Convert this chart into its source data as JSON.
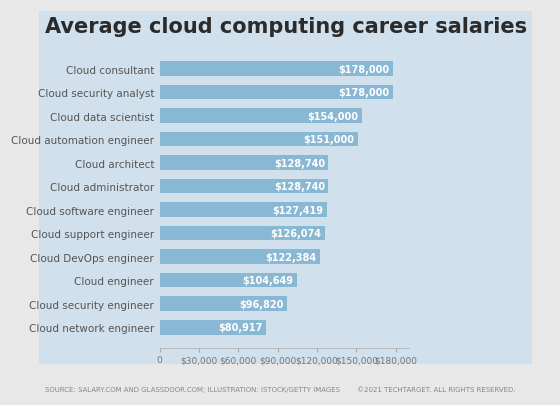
{
  "title": "Average cloud computing career salaries",
  "categories": [
    "Cloud network engineer",
    "Cloud security engineer",
    "Cloud engineer",
    "Cloud DevOps engineer",
    "Cloud support engineer",
    "Cloud software engineer",
    "Cloud administrator",
    "Cloud architect",
    "Cloud automation engineer",
    "Cloud data scientist",
    "Cloud security analyst",
    "Cloud consultant"
  ],
  "values": [
    80917,
    96820,
    104649,
    122384,
    126074,
    127419,
    128740,
    128740,
    151000,
    154000,
    178000,
    178000
  ],
  "labels": [
    "$80,917",
    "$96,820",
    "$104,649",
    "$122,384",
    "$126,074",
    "$127,419",
    "$128,740",
    "$128,740",
    "$151,000",
    "$154,000",
    "$178,000",
    "$178,000"
  ],
  "bar_color": "#89b8d4",
  "label_color": "#ffffff",
  "outer_bg": "#e8e8e8",
  "panel_bg": "#d0e0ec",
  "title_color": "#2b2b2b",
  "axis_label_color": "#555555",
  "tick_label_color": "#777777",
  "xlim": [
    0,
    190000
  ],
  "xticks": [
    0,
    30000,
    60000,
    90000,
    120000,
    150000,
    180000
  ],
  "xtick_labels": [
    "0",
    "$30,000",
    "$60,000",
    "$90,000",
    "$120,000",
    "$150,000",
    "$180,000"
  ],
  "title_fontsize": 15,
  "label_fontsize": 7,
  "category_fontsize": 7.5,
  "tick_fontsize": 6.5,
  "source_text": "SOURCE: SALARY.COM AND GLASSDOOR.COM; ILLUSTRATION: ISTOCK/GETTY IMAGES",
  "footer_right": "©2021 TECHTARGET. ALL RIGHTS RESERVED.",
  "footer_fontsize": 5
}
